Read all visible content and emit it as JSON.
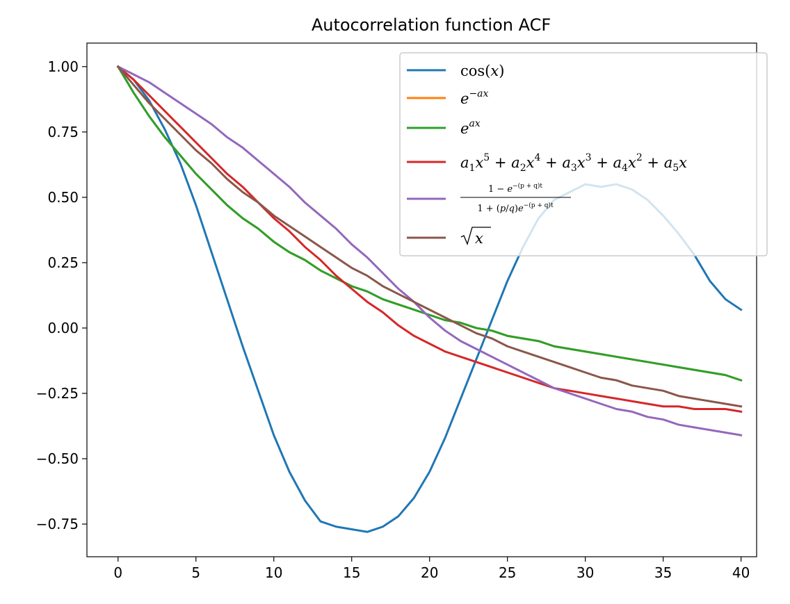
{
  "chart_data": {
    "type": "line",
    "title": "Autocorrelation function ACF",
    "xlabel": "",
    "ylabel": "",
    "xlim": [
      -2,
      41
    ],
    "ylim": [
      -0.875,
      1.09
    ],
    "xticks": [
      0,
      5,
      10,
      15,
      20,
      25,
      30,
      35,
      40
    ],
    "yticks": [
      1.0,
      0.75,
      0.5,
      0.25,
      0.0,
      -0.25,
      -0.5,
      -0.75
    ],
    "xtick_labels": [
      "0",
      "5",
      "10",
      "15",
      "20",
      "25",
      "30",
      "35",
      "40"
    ],
    "ytick_labels": [
      "1.00",
      "0.75",
      "0.50",
      "0.25",
      "0.00",
      "−0.25",
      "−0.50",
      "−0.75"
    ],
    "legend_position": "top-right",
    "grid": false,
    "x": [
      0,
      1,
      2,
      3,
      4,
      5,
      6,
      7,
      8,
      9,
      10,
      11,
      12,
      13,
      14,
      15,
      16,
      17,
      18,
      19,
      20,
      21,
      22,
      23,
      24,
      25,
      26,
      27,
      28,
      29,
      30,
      31,
      32,
      33,
      34,
      35,
      36,
      37,
      38,
      39,
      40
    ],
    "series": [
      {
        "name": "cos(x)",
        "color": "#1f77b4",
        "values": [
          1.0,
          0.95,
          0.87,
          0.76,
          0.63,
          0.47,
          0.29,
          0.11,
          -0.07,
          -0.24,
          -0.41,
          -0.55,
          -0.66,
          -0.74,
          -0.76,
          -0.77,
          -0.78,
          -0.76,
          -0.72,
          -0.65,
          -0.55,
          -0.42,
          -0.27,
          -0.12,
          0.03,
          0.18,
          0.31,
          0.42,
          0.49,
          0.52,
          0.55,
          0.54,
          0.55,
          0.53,
          0.49,
          0.43,
          0.36,
          0.28,
          0.18,
          0.11,
          0.07
        ]
      },
      {
        "name": "e^{-ax}",
        "color": "#ff7f0e",
        "values": [
          1.0,
          0.9,
          0.81,
          0.73,
          0.66,
          0.59,
          0.53,
          0.47,
          0.42,
          0.38,
          0.33,
          0.29,
          0.26,
          0.22,
          0.19,
          0.16,
          0.14,
          0.11,
          0.09,
          0.07,
          0.05,
          0.03,
          0.02,
          0.0,
          -0.01,
          -0.03,
          -0.04,
          -0.05,
          -0.07,
          -0.08,
          -0.09,
          -0.1,
          -0.11,
          -0.12,
          -0.13,
          -0.14,
          -0.15,
          -0.16,
          -0.17,
          -0.18,
          -0.2
        ]
      },
      {
        "name": "e^{ax}",
        "color": "#2ca02c",
        "values": [
          1.0,
          0.9,
          0.81,
          0.73,
          0.66,
          0.59,
          0.53,
          0.47,
          0.42,
          0.38,
          0.33,
          0.29,
          0.26,
          0.22,
          0.19,
          0.16,
          0.14,
          0.11,
          0.09,
          0.07,
          0.05,
          0.03,
          0.02,
          0.0,
          -0.01,
          -0.03,
          -0.04,
          -0.05,
          -0.07,
          -0.08,
          -0.09,
          -0.1,
          -0.11,
          -0.12,
          -0.13,
          -0.14,
          -0.15,
          -0.16,
          -0.17,
          -0.18,
          -0.2
        ]
      },
      {
        "name": "a_1x^5 + a_2x^4 + a_3x^3 + a_4x^2 + a_5x",
        "color": "#d62728",
        "values": [
          1.0,
          0.95,
          0.89,
          0.83,
          0.77,
          0.71,
          0.65,
          0.59,
          0.54,
          0.48,
          0.42,
          0.37,
          0.31,
          0.26,
          0.2,
          0.15,
          0.1,
          0.06,
          0.01,
          -0.03,
          -0.06,
          -0.09,
          -0.11,
          -0.13,
          -0.15,
          -0.17,
          -0.19,
          -0.21,
          -0.23,
          -0.24,
          -0.25,
          -0.26,
          -0.27,
          -0.28,
          -0.29,
          -0.3,
          -0.3,
          -0.31,
          -0.31,
          -0.31,
          -0.32
        ]
      },
      {
        "name": "\\frac{1 - e^{-(p+q)t}}{1 + (p/q)e^{-(p+q)t}}",
        "color": "#9467bd",
        "values": [
          1.0,
          0.97,
          0.94,
          0.9,
          0.86,
          0.82,
          0.78,
          0.73,
          0.69,
          0.64,
          0.59,
          0.54,
          0.48,
          0.43,
          0.38,
          0.32,
          0.27,
          0.21,
          0.15,
          0.1,
          0.04,
          -0.01,
          -0.05,
          -0.08,
          -0.11,
          -0.14,
          -0.17,
          -0.2,
          -0.23,
          -0.25,
          -0.27,
          -0.29,
          -0.31,
          -0.32,
          -0.34,
          -0.35,
          -0.37,
          -0.38,
          -0.39,
          -0.4,
          -0.41
        ]
      },
      {
        "name": "\\sqrt{x}",
        "color": "#8c564b",
        "values": [
          1.0,
          0.93,
          0.86,
          0.8,
          0.74,
          0.68,
          0.63,
          0.57,
          0.52,
          0.48,
          0.43,
          0.39,
          0.35,
          0.31,
          0.27,
          0.23,
          0.2,
          0.16,
          0.13,
          0.1,
          0.07,
          0.04,
          0.01,
          -0.02,
          -0.04,
          -0.07,
          -0.09,
          -0.11,
          -0.13,
          -0.15,
          -0.17,
          -0.19,
          -0.2,
          -0.22,
          -0.23,
          -0.24,
          -0.26,
          -0.27,
          -0.28,
          -0.29,
          -0.3
        ]
      }
    ]
  }
}
